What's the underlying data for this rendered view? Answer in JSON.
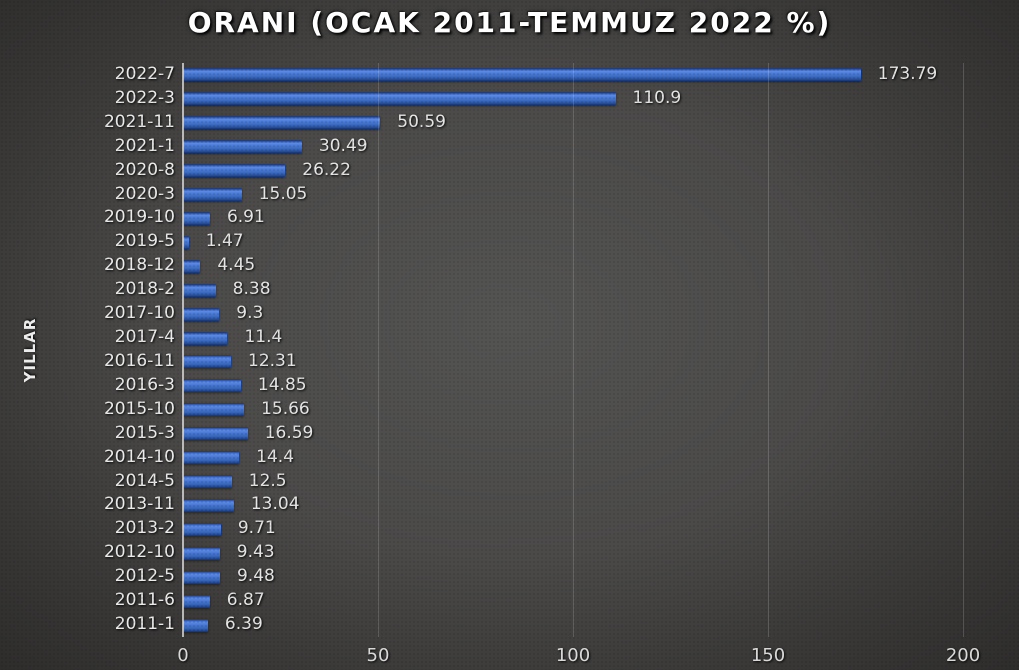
{
  "title": "ORANI (OCAK 2011-TEMMUZ 2022 %)",
  "chart_data": {
    "type": "bar",
    "orientation": "horizontal",
    "title": "ORANI (OCAK 2011-TEMMUZ 2022 %)",
    "ylabel": "YILLAR",
    "xlabel": "",
    "categories": [
      "2022-7",
      "2022-3",
      "2021-11",
      "2021-1",
      "2020-8",
      "2020-3",
      "2019-10",
      "2019-5",
      "2018-12",
      "2018-2",
      "2017-10",
      "2017-4",
      "2016-11",
      "2016-3",
      "2015-10",
      "2015-3",
      "2014-10",
      "2014-5",
      "2013-11",
      "2013-2",
      "2012-10",
      "2012-5",
      "2011-6",
      "2011-1"
    ],
    "values": [
      173.79,
      110.9,
      50.59,
      30.49,
      26.22,
      15.05,
      6.91,
      1.47,
      4.45,
      8.38,
      9.3,
      11.4,
      12.31,
      14.85,
      15.66,
      16.59,
      14.4,
      12.5,
      13.04,
      9.71,
      9.43,
      9.48,
      6.87,
      6.39
    ],
    "value_labels": [
      "173.79",
      "110.9",
      "50.59",
      "30.49",
      "26.22",
      "15.05",
      "6.91",
      "1.47",
      "4.45",
      "8.38",
      "9.3",
      "11.4",
      "12.31",
      "14.85",
      "15.66",
      "16.59",
      "14.4",
      "12.5",
      "13.04",
      "9.71",
      "9.43",
      "9.48",
      "6.87",
      "6.39"
    ],
    "xlim": [
      0,
      200
    ],
    "x_ticks": [
      "0",
      "50",
      "100",
      "150",
      "200"
    ],
    "grid": true,
    "legend": "none",
    "bar_color": "#4472c4",
    "background_center_color": "#545453",
    "background_edge_color": "#2b2a29",
    "text_color": "#ebebeb"
  }
}
